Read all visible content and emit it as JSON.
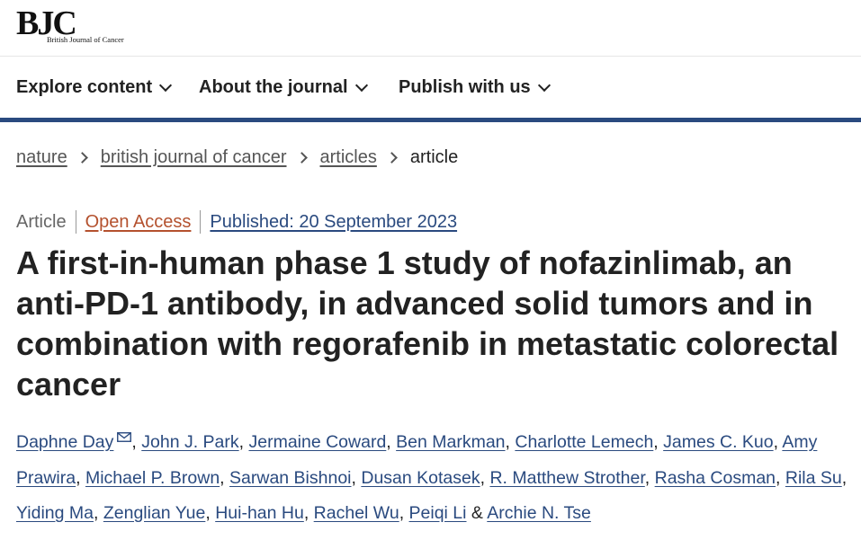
{
  "logo": {
    "main": "BJC",
    "sub": "British Journal of Cancer"
  },
  "nav": [
    {
      "label": "Explore content"
    },
    {
      "label": "About the journal"
    },
    {
      "label": "Publish with us"
    }
  ],
  "breadcrumb": {
    "items": [
      "nature",
      "british journal of cancer",
      "articles"
    ],
    "current": "article"
  },
  "meta": {
    "type": "Article",
    "access": "Open Access",
    "published": "Published: 20 September 2023"
  },
  "title": "A first-in-human phase 1 study of nofazinlimab, an anti-PD-1 antibody, in advanced solid tumors and in combination with regorafenib in metastatic colorectal cancer",
  "authors": [
    "Daphne Day",
    "John J. Park",
    "Jermaine Coward",
    "Ben Markman",
    "Charlotte Lemech",
    "James C. Kuo",
    "Amy Prawira",
    "Michael P. Brown",
    "Sarwan Bishnoi",
    "Dusan Kotasek",
    "R. Matthew Strother",
    "Rasha Cosman",
    "Rila Su",
    "Yiding Ma",
    "Zenglian Yue",
    "Hui-han Hu",
    "Rachel Wu",
    "Peiqi Li",
    "Archie N. Tse"
  ],
  "author_separator": ", ",
  "author_final_separator": " & ",
  "icons": {
    "corresponding_author": "mail-icon",
    "nav_dropdown": "chevron-down-icon",
    "breadcrumb_separator": "chevron-right-icon"
  },
  "colors": {
    "link": "#2a4a7f",
    "open_access": "#b4512e",
    "nav_border": "#2a4a7f"
  }
}
